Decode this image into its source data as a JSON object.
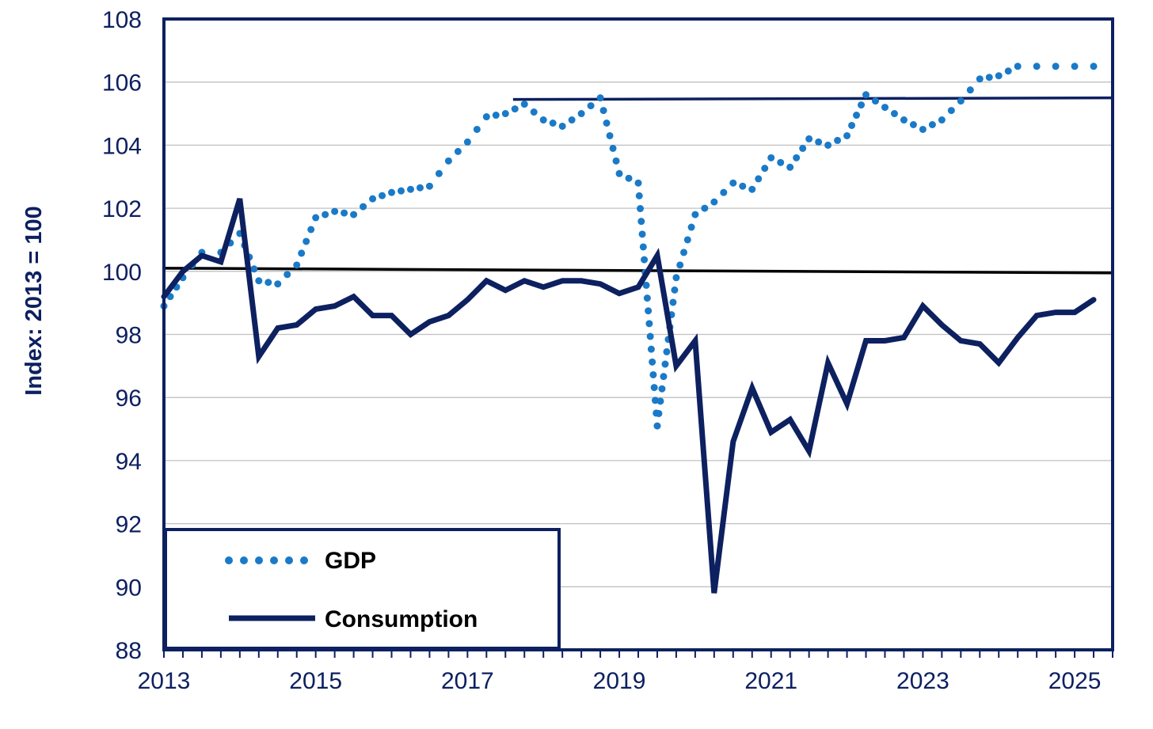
{
  "chart_data": {
    "type": "line",
    "ylabel": "Index: 2013 = 100",
    "xlabel": "",
    "title": "",
    "ylim": [
      88,
      108
    ],
    "xlim": [
      2013.0,
      2025.5
    ],
    "y_ticks": [
      "88",
      "90",
      "92",
      "94",
      "96",
      "98",
      "100",
      "102",
      "104",
      "106",
      "108"
    ],
    "x_ticks": [
      {
        "label": "2013",
        "x": 2013
      },
      {
        "label": "2015",
        "x": 2015
      },
      {
        "label": "2017",
        "x": 2017
      },
      {
        "label": "2019",
        "x": 2019
      },
      {
        "label": "2021",
        "x": 2021
      },
      {
        "label": "2023",
        "x": 2023
      },
      {
        "label": "2025",
        "x": 2025
      }
    ],
    "grid": true,
    "legend_position": "bottom-left",
    "colors": {
      "gdp": "#1a7ac8",
      "consumption": "#0d2060",
      "reference": "#000000",
      "axis": "#0d2060"
    },
    "series": [
      {
        "name": "GDP",
        "style": "dotted",
        "x": [
          2013.0,
          2013.25,
          2013.5,
          2013.75,
          2014.0,
          2014.25,
          2014.5,
          2014.75,
          2015.0,
          2015.25,
          2015.5,
          2015.75,
          2016.0,
          2016.25,
          2016.5,
          2016.75,
          2017.0,
          2017.25,
          2017.5,
          2017.75,
          2018.0,
          2018.25,
          2018.5,
          2018.75,
          2019.0,
          2019.25,
          2019.5,
          2019.75,
          2020.0,
          2020.25,
          2020.5,
          2020.75,
          2021.0,
          2021.25,
          2021.5,
          2021.75,
          2022.0,
          2022.25,
          2022.5,
          2022.75,
          2023.0,
          2023.25,
          2023.5,
          2023.75,
          2024.0,
          2024.25,
          2024.5,
          2024.75,
          2025.0,
          2025.25
        ],
        "values": [
          98.9,
          99.8,
          100.6,
          100.6,
          101.2,
          99.7,
          99.6,
          100.2,
          101.7,
          101.9,
          101.8,
          102.3,
          102.5,
          102.6,
          102.7,
          103.5,
          104.1,
          104.9,
          105.0,
          105.3,
          104.8,
          104.6,
          105.0,
          105.5,
          103.1,
          102.8,
          95.1,
          99.8,
          101.8,
          102.2,
          102.8,
          102.6,
          103.6,
          103.3,
          104.2,
          104.0,
          104.3,
          105.6,
          105.2,
          104.8,
          104.5,
          104.8,
          105.4,
          106.1,
          106.2,
          106.5,
          106.5,
          106.5,
          106.5,
          106.5
        ]
      },
      {
        "name": "Consumption",
        "style": "solid",
        "x": [
          2013.0,
          2013.25,
          2013.5,
          2013.75,
          2014.0,
          2014.25,
          2014.5,
          2014.75,
          2015.0,
          2015.25,
          2015.5,
          2015.75,
          2016.0,
          2016.25,
          2016.5,
          2016.75,
          2017.0,
          2017.25,
          2017.5,
          2017.75,
          2018.0,
          2018.25,
          2018.5,
          2018.75,
          2019.0,
          2019.25,
          2019.5,
          2019.75,
          2020.0,
          2020.25,
          2020.5,
          2020.75,
          2021.0,
          2021.25,
          2021.5,
          2021.75,
          2022.0,
          2022.25,
          2022.5,
          2022.75,
          2023.0,
          2023.25,
          2023.5,
          2023.75,
          2024.0,
          2024.25,
          2024.5,
          2024.75,
          2025.0,
          2025.25
        ],
        "values": [
          99.2,
          100.0,
          100.5,
          100.3,
          102.3,
          97.3,
          98.2,
          98.3,
          98.8,
          98.9,
          99.2,
          98.6,
          98.6,
          98.0,
          98.4,
          98.6,
          99.1,
          99.7,
          99.4,
          99.7,
          99.5,
          99.7,
          99.7,
          99.6,
          99.3,
          99.5,
          100.5,
          97.0,
          97.8,
          89.8,
          94.6,
          96.3,
          94.9,
          95.3,
          94.3,
          97.1,
          95.8,
          97.8,
          97.8,
          97.9,
          98.9,
          98.3,
          97.8,
          97.7,
          97.1,
          97.9,
          98.6,
          98.7,
          98.7,
          99.1
        ]
      }
    ],
    "reference_lines": [
      {
        "x": [
          2013.0,
          2025.5
        ],
        "y": [
          100.1,
          99.95
        ],
        "color": "#000000"
      },
      {
        "x": [
          2017.6,
          2025.5
        ],
        "y": [
          105.45,
          105.5
        ],
        "color": "#0d2060"
      }
    ],
    "legend": [
      {
        "label": "GDP",
        "style": "dotted"
      },
      {
        "label": "Consumption",
        "style": "solid"
      }
    ]
  }
}
